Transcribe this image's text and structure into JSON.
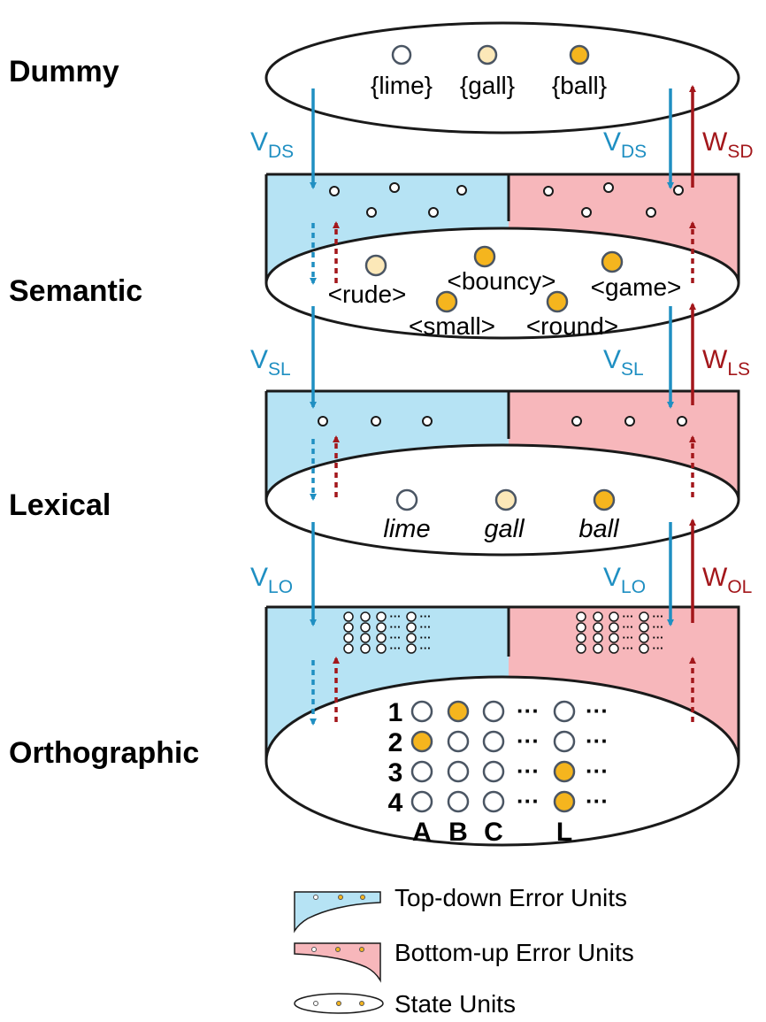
{
  "colors": {
    "top_down_fill": "#b6e3f4",
    "bottom_up_fill": "#f7b7bb",
    "active_unit": "#f5b51e",
    "weak_unit": "#fce8b8",
    "inactive_unit": "#ffffff",
    "top_down_arrow": "#1f8fc2",
    "bottom_up_arrow": "#a3171b",
    "outline": "#1a1a1a"
  },
  "levels": {
    "dummy": "Dummy",
    "semantic": "Semantic",
    "lexical": "Lexical",
    "orthographic": "Orthographic"
  },
  "dummy_units": [
    {
      "label": "{lime}",
      "state": "inactive"
    },
    {
      "label": "{gall}",
      "state": "weak"
    },
    {
      "label": "{ball}",
      "state": "active"
    }
  ],
  "semantic_units": [
    {
      "label": "<rude>",
      "state": "weak"
    },
    {
      "label": "<bouncy>",
      "state": "active"
    },
    {
      "label": "<game>",
      "state": "active"
    },
    {
      "label": "<small>",
      "state": "active"
    },
    {
      "label": "<round>",
      "state": "active"
    }
  ],
  "lexical_units": [
    {
      "label": "lime",
      "state": "inactive"
    },
    {
      "label": "gall",
      "state": "weak"
    },
    {
      "label": "ball",
      "state": "active"
    }
  ],
  "weights": {
    "v_ds": {
      "main": "V",
      "sub": "DS"
    },
    "w_sd": {
      "main": "W",
      "sub": "SD"
    },
    "v_sl": {
      "main": "V",
      "sub": "SL"
    },
    "w_ls": {
      "main": "W",
      "sub": "LS"
    },
    "v_lo": {
      "main": "V",
      "sub": "LO"
    },
    "w_ol": {
      "main": "W",
      "sub": "OL"
    }
  },
  "orthographic": {
    "row_labels": [
      "1",
      "2",
      "3",
      "4"
    ],
    "column_labels": [
      "A",
      "B",
      "C",
      "L"
    ],
    "ellipsis": "···",
    "grid": [
      [
        "inactive",
        "active",
        "inactive",
        "inactive"
      ],
      [
        "active",
        "inactive",
        "inactive",
        "inactive"
      ],
      [
        "inactive",
        "inactive",
        "inactive",
        "active"
      ],
      [
        "inactive",
        "inactive",
        "inactive",
        "active"
      ]
    ]
  },
  "legend": {
    "top_down": "Top-down Error Units",
    "bottom_up": "Bottom-up Error Units",
    "state": "State Units"
  }
}
